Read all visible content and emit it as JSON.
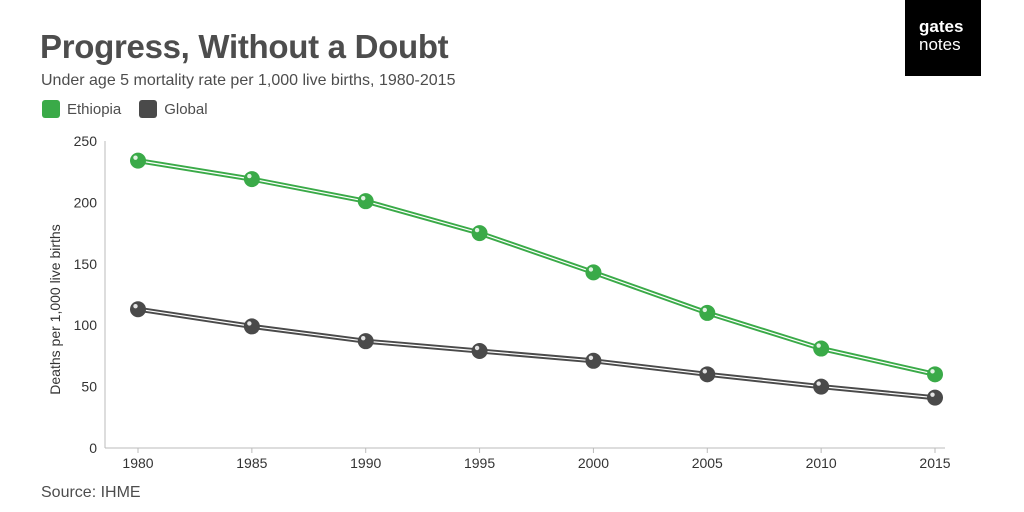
{
  "header": {
    "title": "Progress, Without a Doubt",
    "subtitle": "Under age 5 mortality rate per 1,000 live births, 1980-2015"
  },
  "logo": {
    "top": "gates",
    "bottom": "notes"
  },
  "source": "Source: IHME",
  "colors": {
    "ethiopia": "#3aaa48",
    "global": "#4a4a4a",
    "axis": "#bbbbbb"
  },
  "chart_data": {
    "type": "line",
    "title": "Progress, Without a Doubt",
    "subtitle": "Under age 5 mortality rate per 1,000 live births, 1980-2015",
    "xlabel": "",
    "ylabel": "Deaths per 1,000 live births",
    "x": [
      "1980",
      "1985",
      "1990",
      "1995",
      "2000",
      "2005",
      "2010",
      "2015"
    ],
    "yticks": [
      0,
      50,
      100,
      150,
      200,
      250
    ],
    "ylim": [
      0,
      250
    ],
    "grid": false,
    "legend_position": "top-left",
    "series": [
      {
        "name": "Ethiopia",
        "color": "#3aaa48",
        "values": [
          234,
          219,
          201,
          175,
          143,
          110,
          81,
          60
        ]
      },
      {
        "name": "Global",
        "color": "#4a4a4a",
        "values": [
          113,
          99,
          87,
          79,
          71,
          60,
          50,
          41
        ]
      }
    ]
  }
}
